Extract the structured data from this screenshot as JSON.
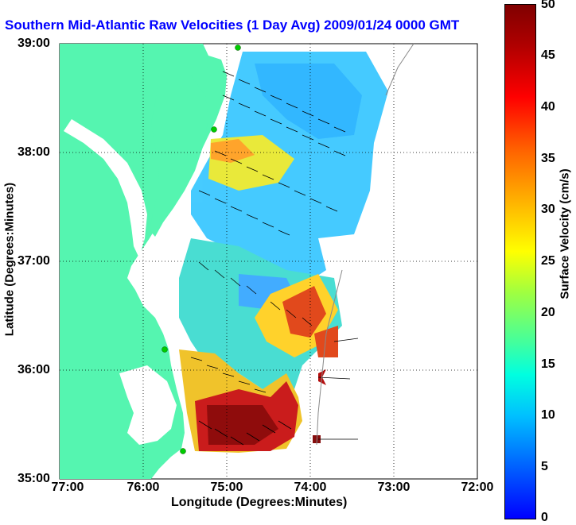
{
  "title": "Southern Mid-Atlantic Raw Velocities (1 Day Avg) 2009/01/24 0000 GMT",
  "xlabel": "Longitude (Degrees:Minutes)",
  "ylabel": "Latitude (Degrees:Minutes)",
  "colorbar": {
    "label": "Surface Velocity (cm/s)",
    "min": 0,
    "max": 50,
    "ticks": [
      "50",
      "45",
      "40",
      "35",
      "30",
      "25",
      "20",
      "15",
      "10",
      "5",
      "0"
    ]
  },
  "x_ticks": [
    "77:00",
    "76:00",
    "75:00",
    "74:00",
    "73:00",
    "72:00"
  ],
  "y_ticks": [
    "39:00",
    "38:00",
    "37:00",
    "36:00",
    "35:00"
  ],
  "colors": {
    "land": "#55f5b0",
    "title": "#0000ff",
    "station": "#00cc00"
  }
}
